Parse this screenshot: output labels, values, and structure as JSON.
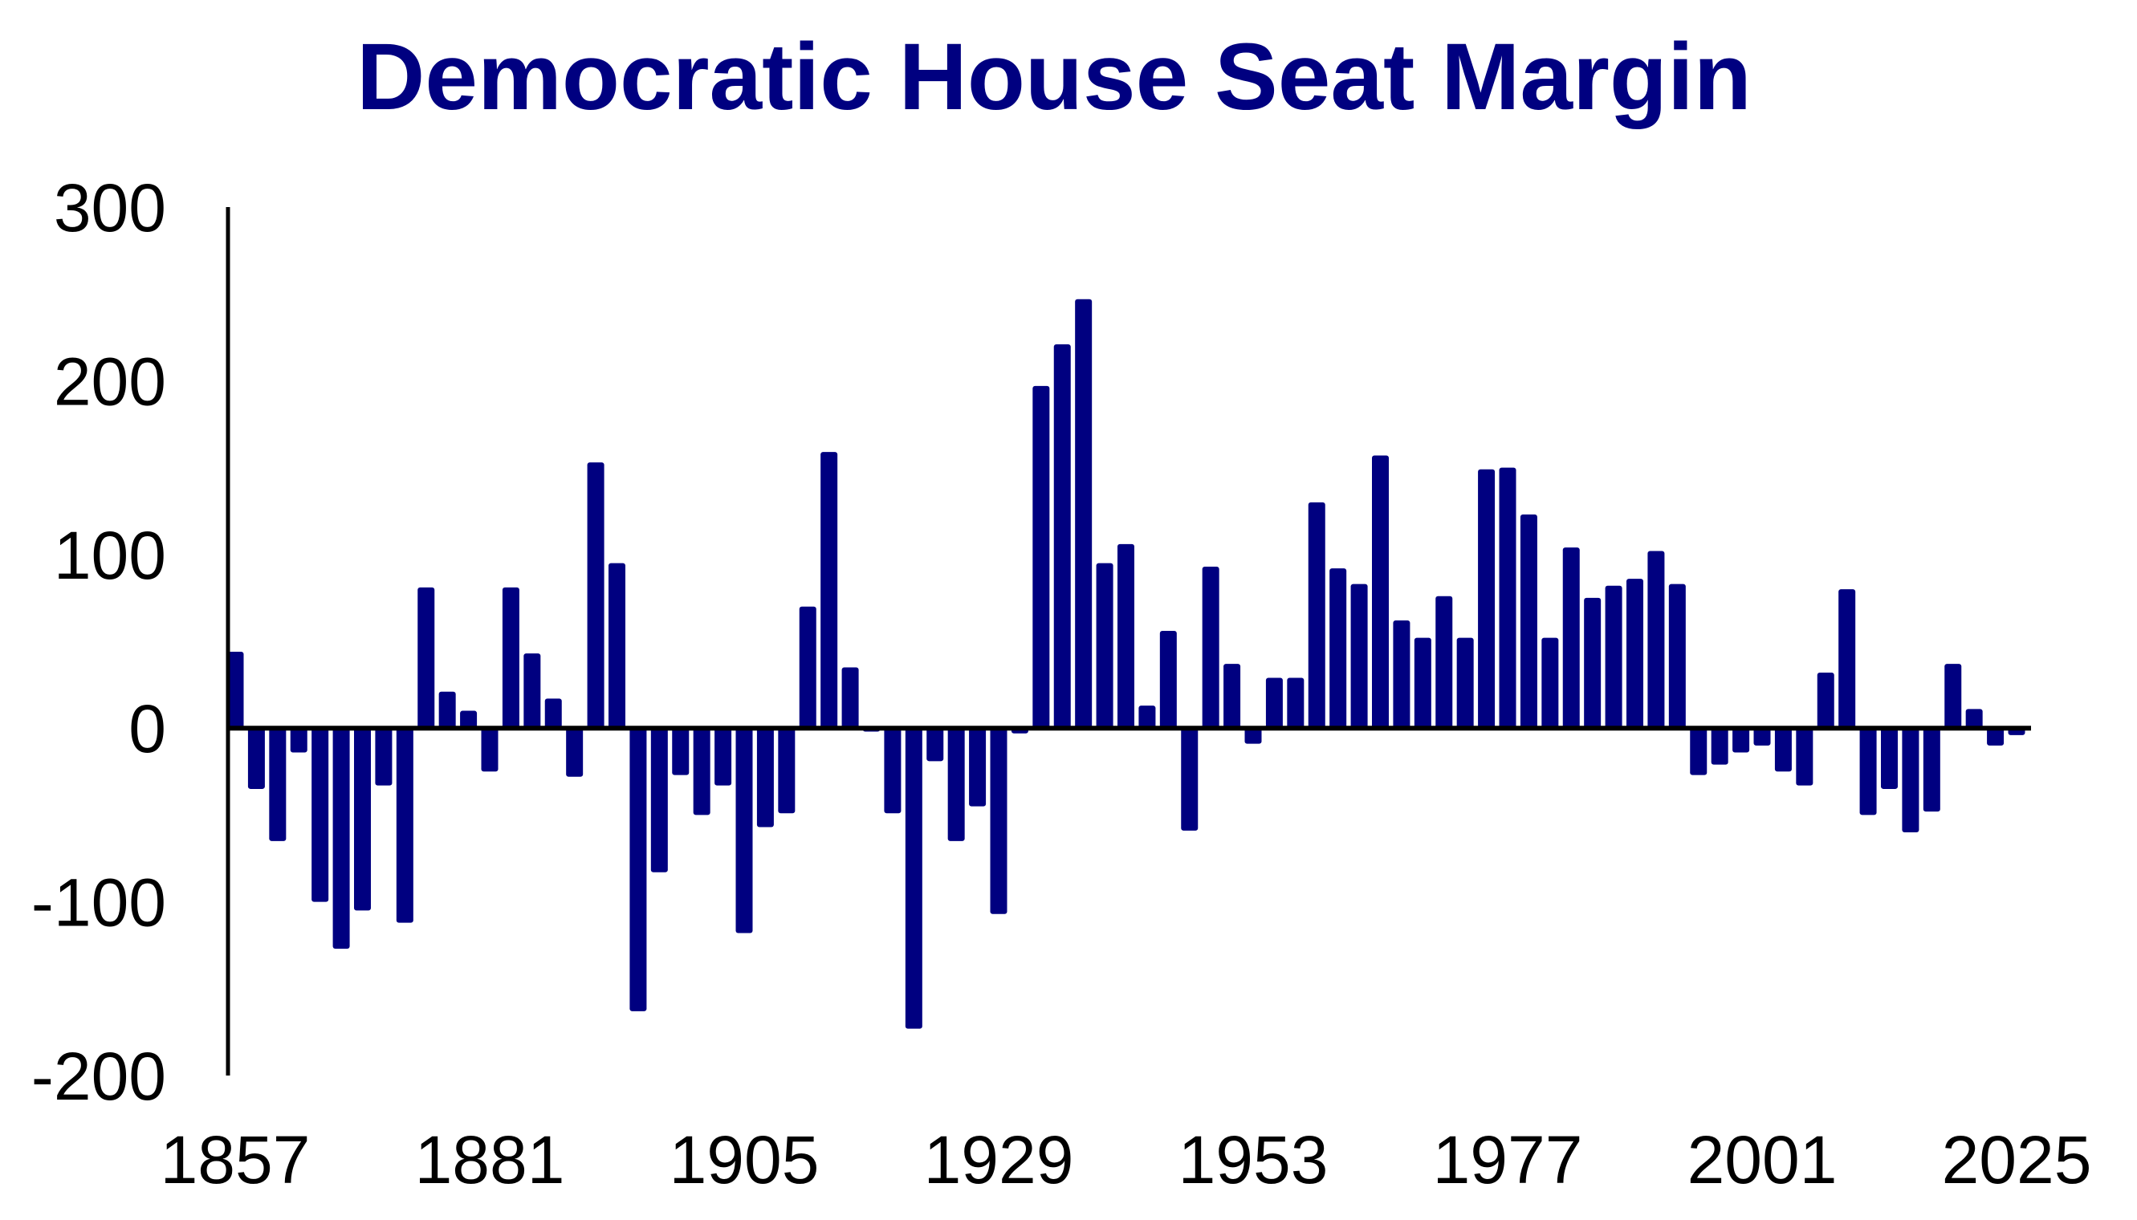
{
  "chart_data": {
    "type": "bar",
    "title": "Democratic House Seat Margin",
    "xlabel": "",
    "ylabel": "",
    "ylim": [
      -200,
      300
    ],
    "yticks": [
      "300",
      "200",
      "100",
      "0",
      "-100",
      "-200"
    ],
    "ytick_values": [
      300,
      200,
      100,
      0,
      -100,
      -200
    ],
    "xticks": [
      "1857",
      "1881",
      "1905",
      "1929",
      "1953",
      "1977",
      "2001",
      "2025"
    ],
    "xtick_values": [
      1857,
      1881,
      1905,
      1929,
      1953,
      1977,
      2001,
      2025
    ],
    "grid": false,
    "bar_color": "#000080",
    "x": [
      1857,
      1859,
      1861,
      1863,
      1865,
      1867,
      1869,
      1871,
      1873,
      1875,
      1877,
      1879,
      1881,
      1883,
      1885,
      1887,
      1889,
      1891,
      1893,
      1895,
      1897,
      1899,
      1901,
      1903,
      1905,
      1907,
      1909,
      1911,
      1913,
      1915,
      1917,
      1919,
      1921,
      1923,
      1925,
      1927,
      1929,
      1931,
      1933,
      1935,
      1937,
      1939,
      1941,
      1943,
      1945,
      1947,
      1949,
      1951,
      1953,
      1955,
      1957,
      1959,
      1961,
      1963,
      1965,
      1967,
      1969,
      1971,
      1973,
      1975,
      1977,
      1979,
      1981,
      1983,
      1985,
      1987,
      1989,
      1991,
      1993,
      1995,
      1997,
      1999,
      2001,
      2003,
      2005,
      2007,
      2009,
      2011,
      2013,
      2015,
      2017,
      2019,
      2021,
      2023,
      2025
    ],
    "values": [
      44,
      -35,
      -65,
      -14,
      -100,
      -127,
      -105,
      -33,
      -112,
      81,
      21,
      10,
      -25,
      81,
      43,
      17,
      -28,
      153,
      95,
      -163,
      -83,
      -27,
      -50,
      -33,
      -118,
      -57,
      -49,
      70,
      159,
      35,
      -2,
      -49,
      -173,
      -19,
      -65,
      -45,
      -107,
      -3,
      197,
      221,
      247,
      95,
      106,
      13,
      56,
      -59,
      93,
      37,
      -9,
      29,
      29,
      130,
      92,
      83,
      157,
      62,
      52,
      76,
      52,
      149,
      150,
      123,
      52,
      104,
      75,
      82,
      86,
      102,
      83,
      -27,
      -21,
      -14,
      -10,
      -25,
      -33,
      32,
      80,
      -50,
      -35,
      -60,
      -48,
      37,
      11,
      -10,
      -4
    ]
  }
}
